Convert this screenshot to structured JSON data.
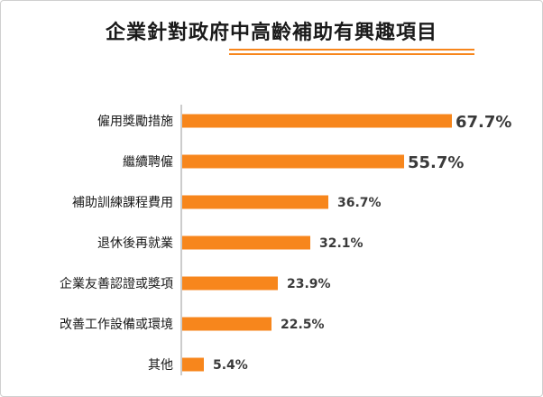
{
  "title": "企業針對政府中高齡補助有興趣項目",
  "colors": {
    "bar": "#f7861c",
    "title_rule": "#f7861c",
    "axis": "#9a9a9a"
  },
  "chart_data": {
    "type": "bar",
    "orientation": "horizontal",
    "title": "企業針對政府中高齡補助有興趣項目",
    "categories": [
      "僱用獎勵措施",
      "繼續聘僱",
      "補助訓練課程費用",
      "退休後再就業",
      "企業友善認證或獎項",
      "改善工作設備或環境",
      "其他"
    ],
    "values": [
      67.7,
      55.7,
      36.7,
      32.1,
      23.9,
      22.5,
      5.4
    ],
    "value_labels": [
      "67.7%",
      "55.7%",
      "36.7%",
      "32.1%",
      "23.9%",
      "22.5%",
      "5.4%"
    ],
    "xlim": [
      0,
      67.7
    ],
    "grid": false,
    "legend": "none"
  }
}
